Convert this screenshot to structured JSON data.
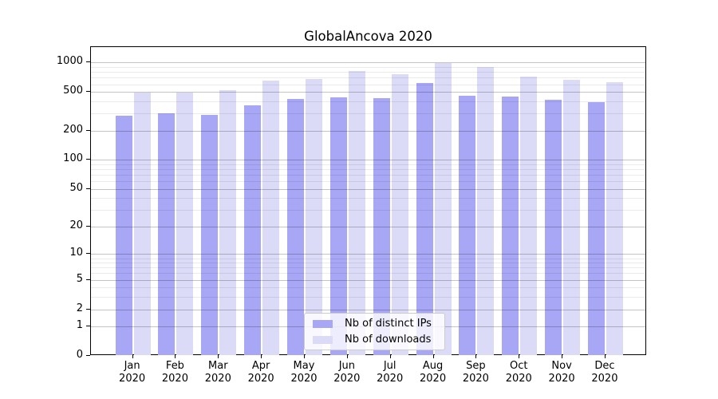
{
  "chart_data": {
    "type": "bar",
    "title": "GlobalAncova 2020",
    "categories": [
      "Jan",
      "Feb",
      "Mar",
      "Apr",
      "May",
      "Jun",
      "Jul",
      "Aug",
      "Sep",
      "Oct",
      "Nov",
      "Dec"
    ],
    "year_label": "2020",
    "series": [
      {
        "name": "Nb of distinct IPs",
        "color": "#a7a7f5",
        "values": [
          284,
          300,
          292,
          363,
          422,
          443,
          430,
          620,
          455,
          452,
          418,
          391
        ]
      },
      {
        "name": "Nb of downloads",
        "color": "#dbdbf8",
        "values": [
          490,
          492,
          519,
          658,
          675,
          815,
          761,
          990,
          901,
          723,
          667,
          634
        ]
      }
    ],
    "xlabel": "",
    "ylabel": "",
    "y_axis": {
      "scale": "log1p",
      "major_ticks": [
        0,
        1,
        2,
        5,
        10,
        20,
        50,
        100,
        200,
        500,
        1000
      ],
      "minor_gridlines": [
        3,
        4,
        6,
        7,
        8,
        9,
        30,
        40,
        60,
        70,
        80,
        90,
        300,
        400,
        600,
        700,
        800,
        900
      ],
      "ylim": [
        0,
        1450
      ]
    },
    "grid": true,
    "legend": {
      "position": "lower center",
      "entries": [
        "Nb of distinct IPs",
        "Nb of downloads"
      ]
    }
  }
}
